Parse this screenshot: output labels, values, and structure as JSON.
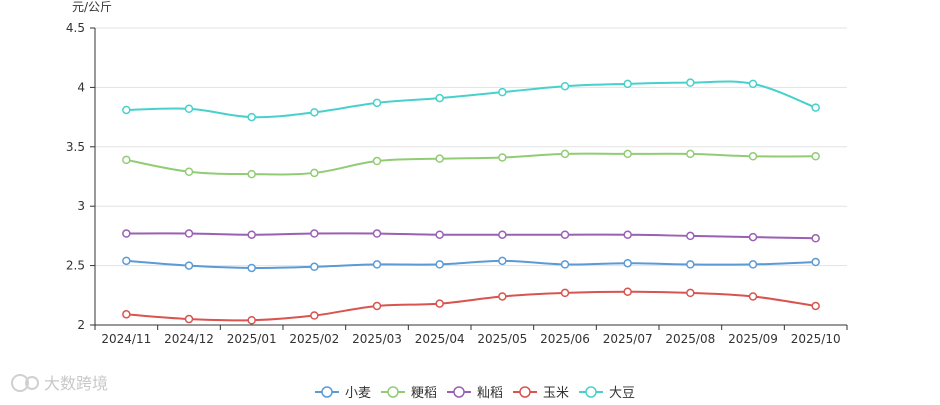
{
  "chart_data": {
    "type": "line",
    "ylabel": "元/公斤",
    "ylim": [
      2,
      4.5
    ],
    "yticks": [
      2,
      2.5,
      3,
      3.5,
      4,
      4.5
    ],
    "ytick_labels": [
      "2",
      "2.5",
      "3",
      "3.5",
      "4",
      "4.5"
    ],
    "grid": true,
    "smooth": true,
    "legend_position": "bottom-center",
    "categories": [
      "2024/11",
      "2024/12",
      "2025/01",
      "2025/02",
      "2025/03",
      "2025/04",
      "2025/05",
      "2025/06",
      "2025/07",
      "2025/08",
      "2025/09",
      "2025/10"
    ],
    "series": [
      {
        "name": "小麦",
        "color": "#5b9bd5",
        "values": [
          2.54,
          2.5,
          2.48,
          2.49,
          2.51,
          2.51,
          2.54,
          2.51,
          2.52,
          2.51,
          2.51,
          2.53
        ]
      },
      {
        "name": "粳稻",
        "color": "#91cc75",
        "values": [
          3.39,
          3.29,
          3.27,
          3.28,
          3.38,
          3.4,
          3.41,
          3.44,
          3.44,
          3.44,
          3.42,
          3.42
        ]
      },
      {
        "name": "籼稻",
        "color": "#9a60b4",
        "values": [
          2.77,
          2.77,
          2.76,
          2.77,
          2.77,
          2.76,
          2.76,
          2.76,
          2.76,
          2.75,
          2.74,
          2.73
        ]
      },
      {
        "name": "玉米",
        "color": "#d9534f",
        "values": [
          2.09,
          2.05,
          2.04,
          2.08,
          2.16,
          2.18,
          2.24,
          2.27,
          2.28,
          2.27,
          2.24,
          2.16
        ]
      },
      {
        "name": "大豆",
        "color": "#48d1cc",
        "values": [
          3.81,
          3.82,
          3.75,
          3.79,
          3.87,
          3.91,
          3.96,
          4.01,
          4.03,
          4.04,
          4.03,
          3.83
        ]
      }
    ]
  },
  "watermark": "大数跨境"
}
